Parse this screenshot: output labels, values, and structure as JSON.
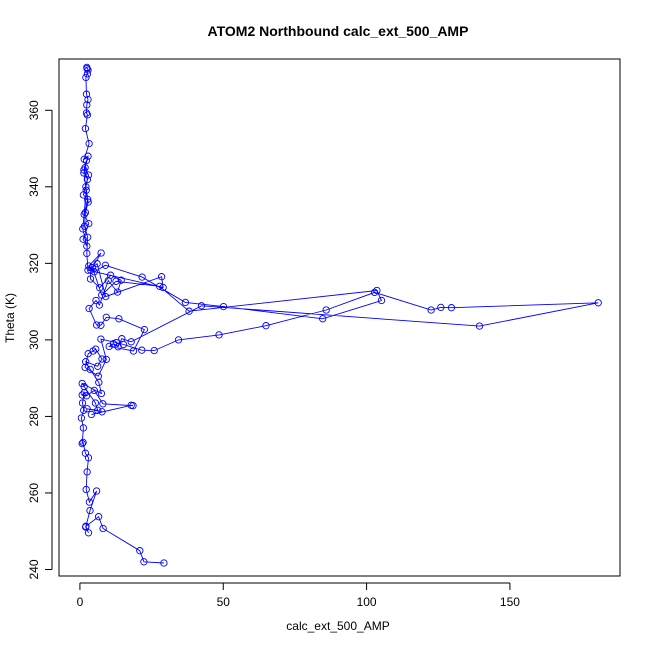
{
  "chart_data": {
    "type": "line",
    "title": "ATOM2 Northbound calc_ext_500_AMP",
    "xlabel": "calc_ext_500_AMP",
    "ylabel": "Theta (K)",
    "xlim": [
      -7.3,
      188.4
    ],
    "ylim": [
      238.3,
      373.4
    ],
    "xticks": [
      0,
      50,
      100,
      150
    ],
    "yticks": [
      240,
      260,
      280,
      300,
      320,
      340,
      360
    ],
    "xtick_labels": [
      "0",
      "50",
      "100",
      "150"
    ],
    "ytick_labels": [
      "240",
      "260",
      "280",
      "300",
      "320",
      "340",
      "360"
    ],
    "grid": false,
    "series": [
      {
        "color": "#0000ff",
        "marker": "open-circle",
        "x": [
          29.3,
          22.3,
          20.9,
          8.1,
          6.5,
          2.1,
          3.0,
          2.0,
          3.5,
          5.8,
          3.3,
          2.2,
          2.5,
          3.0,
          1.9,
          1.1,
          0.8,
          1.2,
          0.5,
          1.3,
          0.9,
          1.5,
          0.8,
          2.3,
          5.0,
          8.0,
          18.5,
          17.9,
          4.0,
          7.7,
          2.5,
          6.2,
          5.4,
          1.5,
          0.8,
          7.5,
          6.6,
          3.6,
          2.0,
          6.2,
          7.7,
          5.5,
          4.6,
          2.9,
          1.8,
          6.4,
          9.2,
          7.3,
          12.7,
          15.2,
          21.6,
          25.9,
          34.4,
          48.5,
          64.9,
          85.9,
          102.8,
          122.5,
          125.9,
          129.6,
          180.8,
          139.4,
          42.4,
          17.9,
          14.6,
          13.3,
          11.7,
          10.2,
          18.7,
          22.5,
          13.6,
          9.2,
          7.3,
          5.8,
          3.2,
          5.6,
          6.8,
          9.9,
          13.1,
          14.4,
          10.7,
          6.9,
          3.7,
          3.8,
          7.4,
          3.1,
          5.0,
          8.9,
          21.7,
          36.8,
          50.1,
          84.7,
          105.2,
          103.6,
          38.1,
          27.8,
          12.6,
          7.6,
          4.4,
          6.0,
          9.0,
          28.5,
          29.0,
          2.8,
          2.4,
          2.7,
          1.6,
          1.9,
          2.9,
          2.1,
          3.0,
          1.8,
          2.3,
          1.4,
          2.6,
          1.2,
          2.7,
          1.5,
          3.1,
          1.1,
          2.4,
          1.0,
          2.2,
          1.4,
          2.8,
          1.5,
          3.2,
          1.9,
          2.6,
          2.3,
          2.4,
          2.8,
          2.3,
          2.1,
          2.6,
          2.8,
          2.4,
          2.5
        ],
        "y": [
          241.7,
          242.0,
          244.9,
          250.7,
          253.8,
          251.3,
          249.6,
          251.1,
          255.4,
          260.5,
          257.6,
          260.9,
          265.5,
          269.2,
          270.4,
          273.2,
          272.9,
          277.0,
          279.6,
          281.6,
          283.5,
          286.2,
          285.6,
          285.4,
          286.8,
          283.3,
          282.8,
          282.9,
          280.5,
          281.2,
          282.0,
          281.6,
          283.5,
          287.8,
          288.6,
          286.0,
          288.9,
          292.3,
          294.3,
          293.1,
          295.0,
          297.6,
          297.1,
          296.4,
          292.8,
          290.5,
          294.9,
          300.2,
          299.3,
          298.8,
          297.3,
          297.2,
          300.0,
          301.3,
          303.7,
          307.8,
          312.4,
          307.8,
          308.5,
          308.4,
          309.7,
          303.6,
          308.9,
          299.5,
          300.3,
          298.2,
          299.0,
          298.3,
          297.1,
          302.7,
          305.5,
          305.9,
          303.8,
          303.9,
          308.2,
          310.3,
          309.1,
          315.5,
          312.5,
          315.6,
          316.9,
          313.6,
          315.9,
          318.2,
          322.7,
          319.3,
          317.8,
          319.5,
          316.4,
          309.8,
          308.7,
          305.5,
          310.3,
          312.9,
          307.5,
          314.0,
          315.3,
          311.7,
          318.9,
          319.9,
          311.3,
          316.5,
          313.7,
          318.2,
          322.6,
          326.8,
          329.7,
          333.3,
          336.0,
          340.0,
          343.1,
          345.0,
          346.9,
          344.4,
          341.9,
          337.9,
          336.7,
          332.8,
          330.4,
          326.3,
          324.5,
          329.0,
          339.1,
          343.6,
          348.0,
          347.2,
          351.3,
          355.2,
          358.8,
          359.3,
          361.4,
          362.8,
          364.2,
          368.6,
          369.5,
          370.5,
          371.2,
          370.9
        ]
      }
    ]
  }
}
